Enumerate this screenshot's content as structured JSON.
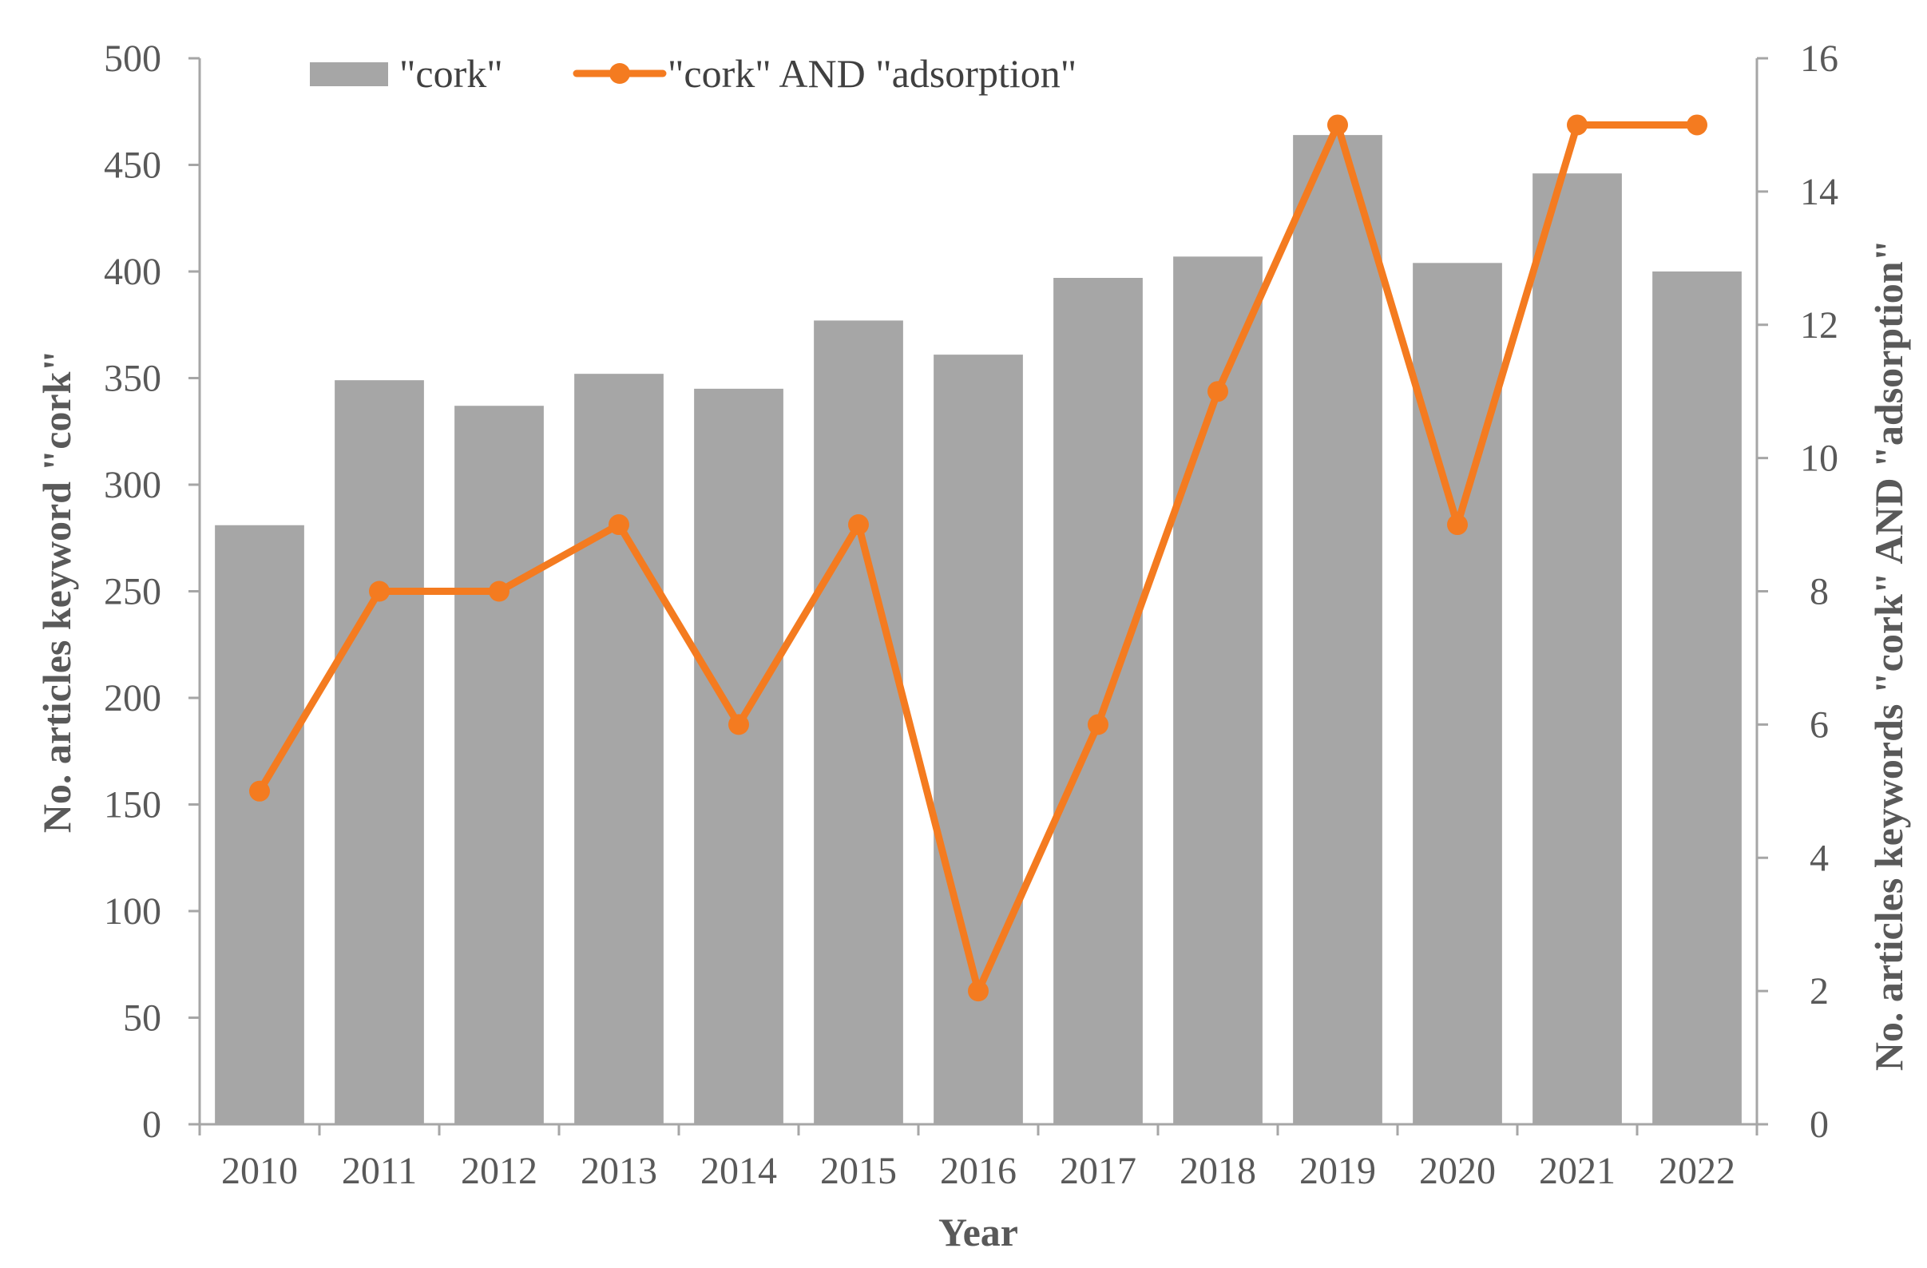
{
  "chart_data": {
    "type": "bar",
    "title": "",
    "categories": [
      "2010",
      "2011",
      "2012",
      "2013",
      "2014",
      "2015",
      "2016",
      "2017",
      "2018",
      "2019",
      "2020",
      "2021",
      "2022"
    ],
    "xlabel": "Year",
    "ylabel": "No. articles keyword \"cork\"",
    "y2label": "No. articles keywords \"cork\" AND \"adsorption\"",
    "ylim": [
      0,
      500
    ],
    "y2lim": [
      0,
      16
    ],
    "yticks": [
      "0",
      "50",
      "100",
      "150",
      "200",
      "250",
      "300",
      "350",
      "400",
      "450",
      "500"
    ],
    "y2ticks": [
      "0",
      "2",
      "4",
      "6",
      "8",
      "10",
      "12",
      "14",
      "16"
    ],
    "grid": false,
    "legend_position": "top",
    "series": [
      {
        "name": "\"cork\"",
        "type": "bar",
        "axis": "left",
        "color": "#a6a6a6",
        "values": [
          281,
          349,
          337,
          352,
          345,
          377,
          361,
          397,
          407,
          464,
          404,
          446,
          400
        ]
      },
      {
        "name": "\"cork\" AND \"adsorption\"",
        "type": "line",
        "axis": "right",
        "color": "#f47b20",
        "marker": "circle",
        "values": [
          5,
          8,
          8,
          9,
          6,
          9,
          2,
          6,
          11,
          15,
          9,
          15,
          15
        ]
      }
    ]
  }
}
